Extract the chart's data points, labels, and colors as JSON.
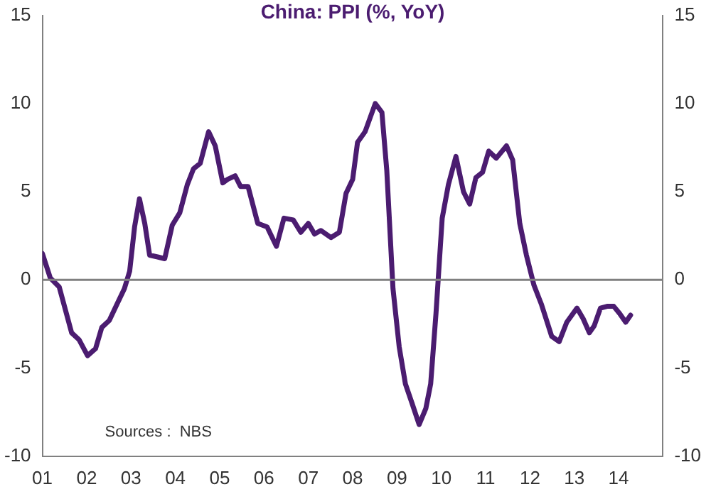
{
  "chart_data": {
    "type": "line",
    "title": "China: PPI (%, YoY)",
    "annotations": [
      "Sources :  NBS"
    ],
    "xlim": [
      2001,
      2015
    ],
    "xticks": [
      {
        "value": 2001,
        "label": "01"
      },
      {
        "value": 2002,
        "label": "02"
      },
      {
        "value": 2003,
        "label": "03"
      },
      {
        "value": 2004,
        "label": "04"
      },
      {
        "value": 2005,
        "label": "05"
      },
      {
        "value": 2006,
        "label": "06"
      },
      {
        "value": 2007,
        "label": "07"
      },
      {
        "value": 2008,
        "label": "08"
      },
      {
        "value": 2009,
        "label": "09"
      },
      {
        "value": 2010,
        "label": "10"
      },
      {
        "value": 2011,
        "label": "11"
      },
      {
        "value": 2012,
        "label": "12"
      },
      {
        "value": 2013,
        "label": "13"
      },
      {
        "value": 2014,
        "label": "14"
      },
      {
        "value": 2015,
        "label": null
      }
    ],
    "ylim": [
      -10,
      15
    ],
    "yticks": [
      -10,
      -5,
      0,
      5,
      10,
      15
    ],
    "y2lim": [
      -10,
      15
    ],
    "y2ticks": [
      -10,
      -5,
      0,
      5,
      10,
      15
    ],
    "grid": false,
    "legend": false,
    "marker": "none",
    "line_style": "solid",
    "ref_lines": [
      {
        "axis": "y",
        "value": 0,
        "color": "#808080"
      }
    ],
    "series": [
      {
        "color": "#4b1c70",
        "x": [
          2001.0,
          2001.18,
          2001.38,
          2001.66,
          2001.83,
          2002.02,
          2002.2,
          2002.34,
          2002.51,
          2002.68,
          2002.85,
          2002.97,
          2003.08,
          2003.19,
          2003.31,
          2003.42,
          2003.6,
          2003.76,
          2003.93,
          2004.1,
          2004.27,
          2004.41,
          2004.56,
          2004.75,
          2004.9,
          2005.07,
          2005.18,
          2005.35,
          2005.47,
          2005.64,
          2005.86,
          2006.07,
          2006.28,
          2006.45,
          2006.66,
          2006.83,
          2007.0,
          2007.14,
          2007.28,
          2007.51,
          2007.7,
          2007.85,
          2008.0,
          2008.11,
          2008.28,
          2008.51,
          2008.66,
          2008.77,
          2008.91,
          2009.05,
          2009.19,
          2009.34,
          2009.5,
          2009.65,
          2009.76,
          2009.88,
          2010.02,
          2010.16,
          2010.33,
          2010.5,
          2010.64,
          2010.78,
          2010.93,
          2011.07,
          2011.24,
          2011.47,
          2011.61,
          2011.77,
          2011.92,
          2012.09,
          2012.26,
          2012.49,
          2012.66,
          2012.83,
          2013.06,
          2013.2,
          2013.34,
          2013.45,
          2013.59,
          2013.74,
          2013.89,
          2014.02,
          2014.16,
          2014.27
        ],
        "values": [
          1.5,
          0.1,
          -0.4,
          -3.0,
          -3.4,
          -4.3,
          -3.9,
          -2.7,
          -2.3,
          -1.4,
          -0.5,
          0.5,
          3.0,
          4.6,
          3.2,
          1.4,
          1.3,
          1.2,
          3.1,
          3.8,
          5.4,
          6.3,
          6.6,
          8.4,
          7.6,
          5.5,
          5.7,
          5.9,
          5.3,
          5.3,
          3.2,
          3.0,
          1.9,
          3.5,
          3.4,
          2.7,
          3.2,
          2.6,
          2.8,
          2.4,
          2.7,
          4.9,
          5.7,
          7.8,
          8.4,
          10.0,
          9.5,
          6.2,
          -0.5,
          -3.8,
          -5.9,
          -7.0,
          -8.2,
          -7.3,
          -5.9,
          -1.9,
          3.5,
          5.4,
          7.0,
          5.0,
          4.3,
          5.8,
          6.1,
          7.3,
          6.9,
          7.6,
          6.8,
          3.2,
          1.4,
          -0.3,
          -1.4,
          -3.2,
          -3.5,
          -2.4,
          -1.6,
          -2.2,
          -3.0,
          -2.6,
          -1.6,
          -1.5,
          -1.5,
          -1.9,
          -2.4,
          -2.0
        ]
      }
    ]
  }
}
